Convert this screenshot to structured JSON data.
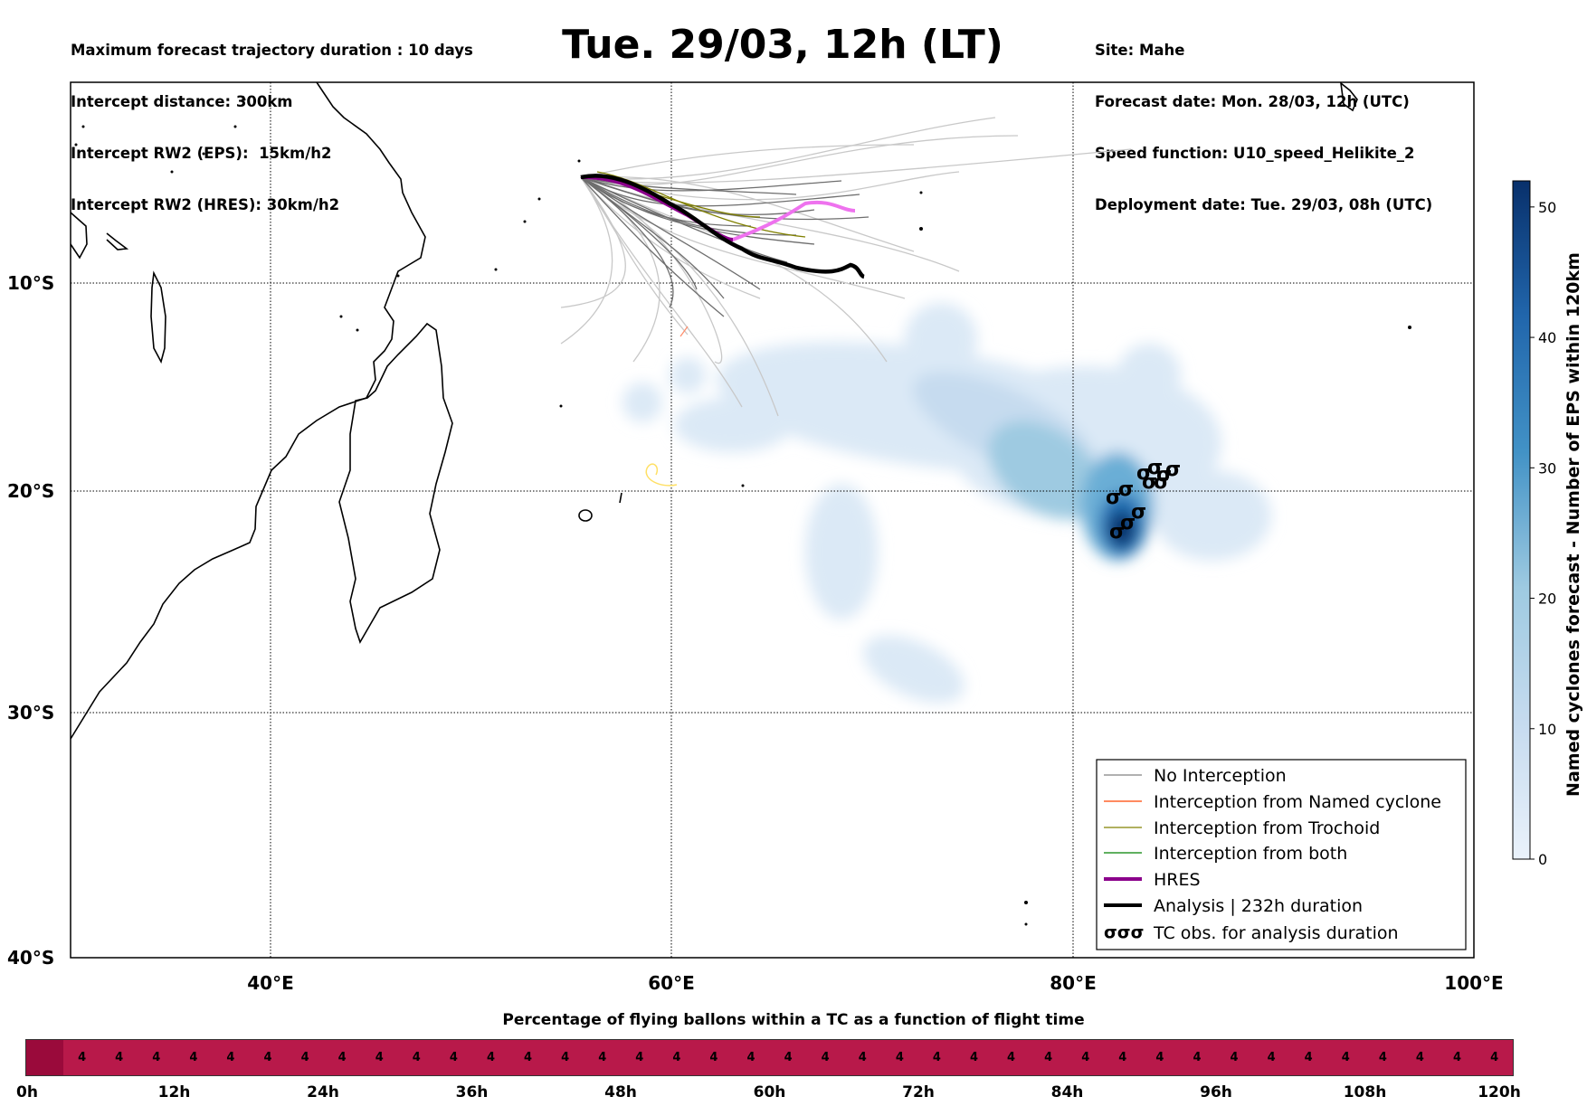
{
  "header_left": [
    "Maximum forecast trajectory duration : 10 days",
    "Intercept distance: 300km",
    "Intercept RW2 (EPS):  15km/h2",
    "Intercept RW2 (HRES): 30km/h2"
  ],
  "title": "Tue. 29/03, 12h (LT)",
  "header_right": [
    "Site: Mahe",
    "Forecast date: Mon. 28/03, 12h (UTC)",
    "Speed function: U10_speed_Helikite_2",
    "Deployment date: Tue. 29/03, 08h (UTC)"
  ],
  "lat_labels": [
    "10°S",
    "20°S",
    "30°S",
    "40°S"
  ],
  "lon_labels": [
    "40°E",
    "60°E",
    "80°E",
    "100°E"
  ],
  "legend": {
    "no_interception": "No Interception",
    "named_cyclone": "Interception from Named cyclone",
    "trochoid": "Interception from Trochoid",
    "both": "Interception from both",
    "hres": "HRES",
    "analysis": "Analysis | 232h duration",
    "tc_obs": "TC obs. for analysis duration",
    "tc_symbol": "σσσ"
  },
  "colorbar": {
    "label": "Named cyclones forecast - Number of EPS within 120km",
    "ticks": [
      "0",
      "10",
      "20",
      "30",
      "40",
      "50"
    ]
  },
  "flight_time": {
    "title": "Percentage of flying ballons within a TC as a function of flight time",
    "values": [
      4,
      4,
      4,
      4,
      4,
      4,
      4,
      4,
      4,
      4,
      4,
      4,
      4,
      4,
      4,
      4,
      4,
      4,
      4,
      4,
      4,
      4,
      4,
      4,
      4,
      4,
      4,
      4,
      4,
      4,
      4,
      4,
      4,
      4,
      4,
      4,
      4,
      4,
      4
    ],
    "hour_labels": [
      "0h",
      "12h",
      "24h",
      "36h",
      "48h",
      "60h",
      "72h",
      "84h",
      "96h",
      "108h",
      "120h"
    ]
  },
  "colors": {
    "no_interception": "#808080",
    "named_cyclone": "#ff4500",
    "trochoid": "#808000",
    "both": "#008000",
    "hres": "#8b008b",
    "analysis": "#000000",
    "bar": "#b8194a"
  }
}
